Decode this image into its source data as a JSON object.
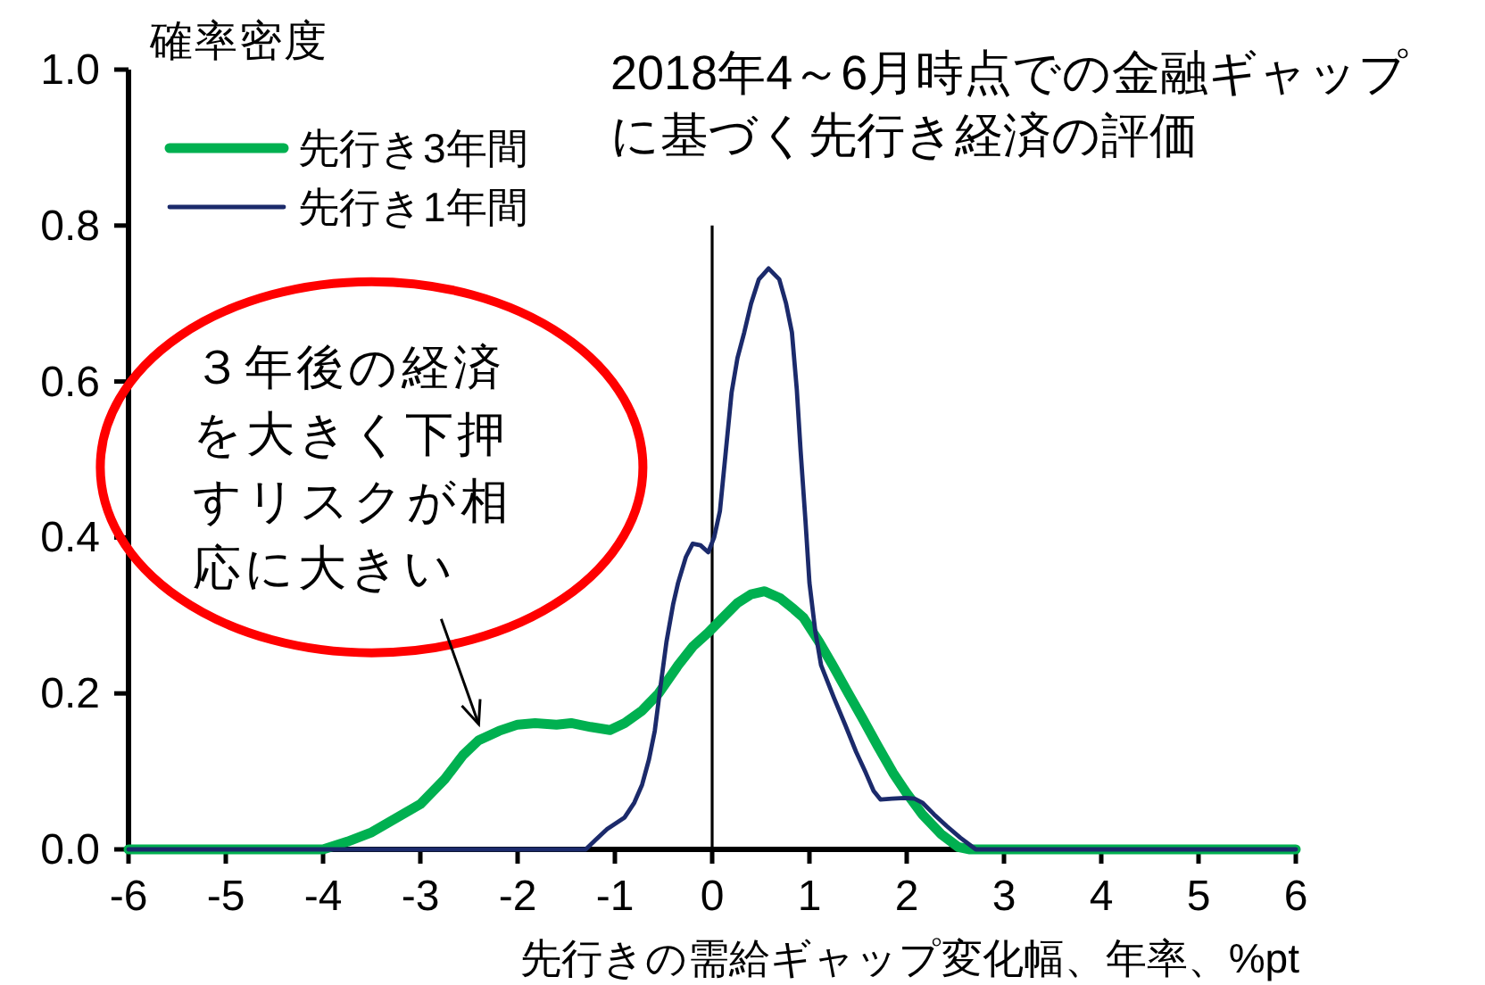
{
  "chart_data": {
    "type": "line",
    "title": "2018年4～6月時点での金融ギャップ",
    "subtitle": "に基づく先行き経済の評価",
    "xlabel": "先行きの需給ギャップ変化幅、年率、%pt",
    "ylabel": "確率密度",
    "xlim": [
      -6,
      6
    ],
    "xticks": [
      -6,
      -5,
      -4,
      -3,
      -2,
      -1,
      0,
      1,
      2,
      3,
      4,
      5,
      6
    ],
    "ylim": [
      0,
      1
    ],
    "yticks": [
      {
        "value": 0,
        "label": "0.0"
      },
      {
        "value": 0.2,
        "label": "0.2"
      },
      {
        "value": 0.4,
        "label": "0.4"
      },
      {
        "value": 0.6,
        "label": "0.6"
      },
      {
        "value": 0.8,
        "label": "0.8"
      },
      {
        "value": 1,
        "label": "1.0"
      }
    ],
    "legend": "top left",
    "ref_lines": [
      {
        "axis": "x",
        "value": 0,
        "color": "#000000"
      }
    ],
    "annotations": [
      {
        "text": "３年後の経済を大きく下押すリスクが相応に大きい",
        "x": -2.4,
        "y": 0.14
      }
    ],
    "series": [
      {
        "name": "先行き3年間",
        "color": "#00b050",
        "x": [
          -6,
          -5,
          -4,
          -3.75,
          -3.5,
          -3.25,
          -3,
          -2.75,
          -2.56,
          -2.4,
          -2.19,
          -2,
          -1.82,
          -1.6,
          -1.45,
          -1.25,
          -1.05,
          -0.9,
          -0.72,
          -0.55,
          -0.35,
          -0.2,
          -0.04,
          0.1,
          0.26,
          0.4,
          0.54,
          0.7,
          0.84,
          0.94,
          1.1,
          1.24,
          1.4,
          1.55,
          1.7,
          1.86,
          2,
          2.16,
          2.35,
          2.53,
          2.65,
          3,
          6
        ],
        "values": [
          0,
          0,
          0,
          0.01,
          0.022,
          0.04,
          0.058,
          0.09,
          0.121,
          0.14,
          0.152,
          0.16,
          0.162,
          0.16,
          0.162,
          0.157,
          0.153,
          0.162,
          0.178,
          0.2,
          0.236,
          0.26,
          0.278,
          0.296,
          0.316,
          0.327,
          0.331,
          0.322,
          0.308,
          0.297,
          0.266,
          0.236,
          0.2,
          0.167,
          0.133,
          0.098,
          0.072,
          0.045,
          0.02,
          0.003,
          0,
          0,
          0
        ]
      },
      {
        "name": "先行き1年間",
        "color": "#1b2a6b",
        "x": [
          -6,
          -1.3,
          -1.2,
          -1.08,
          -0.9,
          -0.8,
          -0.72,
          -0.65,
          -0.59,
          -0.53,
          -0.47,
          -0.4,
          -0.35,
          -0.27,
          -0.2,
          -0.12,
          -0.04,
          0.02,
          0.08,
          0.14,
          0.2,
          0.26,
          0.33,
          0.4,
          0.48,
          0.58,
          0.69,
          0.76,
          0.82,
          0.87,
          0.91,
          0.96,
          1,
          1.06,
          1.12,
          1.25,
          1.37,
          1.48,
          1.58,
          1.66,
          1.73,
          1.85,
          1.98,
          2.08,
          2.16,
          2.28,
          2.41,
          2.55,
          2.71,
          6
        ],
        "values": [
          0,
          0,
          0.012,
          0.026,
          0.041,
          0.06,
          0.083,
          0.115,
          0.152,
          0.21,
          0.266,
          0.315,
          0.342,
          0.375,
          0.392,
          0.39,
          0.381,
          0.4,
          0.434,
          0.51,
          0.586,
          0.63,
          0.663,
          0.7,
          0.731,
          0.745,
          0.731,
          0.7,
          0.663,
          0.59,
          0.51,
          0.42,
          0.342,
          0.28,
          0.236,
          0.195,
          0.159,
          0.125,
          0.098,
          0.075,
          0.064,
          0.065,
          0.066,
          0.065,
          0.06,
          0.045,
          0.03,
          0.015,
          0,
          0
        ]
      }
    ]
  }
}
